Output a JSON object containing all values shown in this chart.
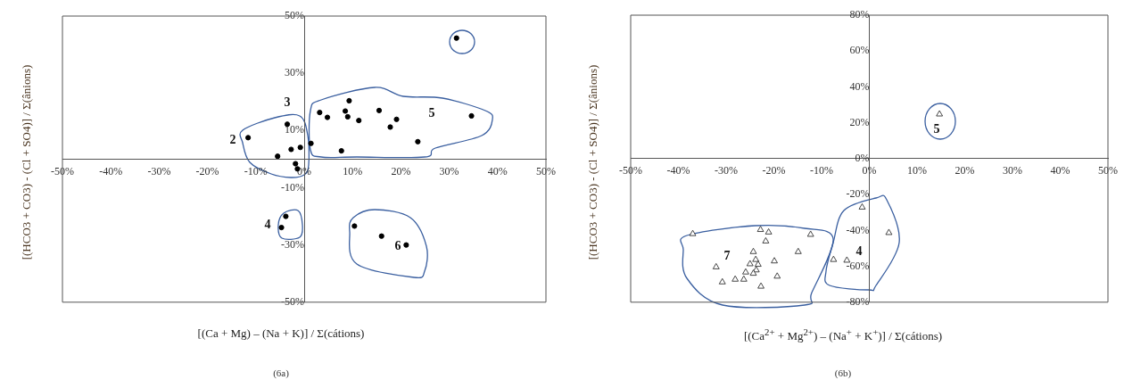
{
  "chart_data": [
    {
      "type": "scatter",
      "title": "(6a)",
      "xlabel": "[(Ca + Mg) – (Na + K)] / Σ(cátions)",
      "ylabel": "[(HCO3 + CO3) - (Cl + SO4)] / Σ(ânions)",
      "marker": "circle",
      "grid": false,
      "legend": false,
      "xlim": [
        -50,
        50
      ],
      "xticks": [
        {
          "value": -50,
          "label": "-50%"
        },
        {
          "value": -40,
          "label": "-40%"
        },
        {
          "value": -30,
          "label": "-30%"
        },
        {
          "value": -20,
          "label": "-20%"
        },
        {
          "value": -10,
          "label": "-10%"
        },
        {
          "value": 0,
          "label": "0%"
        },
        {
          "value": 10,
          "label": "10%"
        },
        {
          "value": 20,
          "label": "20%"
        },
        {
          "value": 30,
          "label": "30%"
        },
        {
          "value": 40,
          "label": "40%"
        },
        {
          "value": 50,
          "label": "50%"
        }
      ],
      "ylim": [
        -50,
        50
      ],
      "yticks": [
        {
          "value": -50,
          "label": "-50%"
        },
        {
          "value": -30,
          "label": "-30%"
        },
        {
          "value": -10,
          "label": "-10%"
        },
        {
          "value": 10,
          "label": "10%"
        },
        {
          "value": 30,
          "label": "30%"
        },
        {
          "value": 50,
          "label": "50%"
        }
      ],
      "series": [
        {
          "color": "#000000",
          "x": [
            31.5,
            9.3,
            3.2,
            4.8,
            8.5,
            9.0,
            11.3,
            15.5,
            17.8,
            19.1,
            34.6,
            23.5,
            1.4,
            7.7,
            -0.8,
            -2.7,
            -5.5,
            -3.5,
            -11.6,
            -1.8,
            -1.4,
            -3.8,
            -4.7,
            10.4,
            16.0,
            21.1
          ],
          "values": [
            42.3,
            20.4,
            16.3,
            14.6,
            16.8,
            14.8,
            13.5,
            17.0,
            11.2,
            13.9,
            15.1,
            6.1,
            5.5,
            2.9,
            4.1,
            3.4,
            1.0,
            12.2,
            7.5,
            -1.6,
            -3.4,
            -20.0,
            -23.9,
            -23.4,
            -26.9,
            -30.0
          ]
        }
      ],
      "annotations": [
        "2",
        "3",
        "4",
        "5",
        "6"
      ]
    },
    {
      "type": "scatter",
      "title": "(6b)",
      "xlabel": "[(Ca$^{2+}$ + Mg$^{2+}$) – (Na$^{+}$ + K$^{+}$)] / Σ(cátions)",
      "ylabel": "[(HCO3 + CO3) - (Cl + SO4)] / Σ(ânions)",
      "marker": "triangle",
      "grid": false,
      "legend": false,
      "xlim": [
        -50,
        50
      ],
      "xticks": [
        {
          "value": -50,
          "label": "-50%"
        },
        {
          "value": -40,
          "label": "-40%"
        },
        {
          "value": -30,
          "label": "-30%"
        },
        {
          "value": -20,
          "label": "-20%"
        },
        {
          "value": -10,
          "label": "-10%"
        },
        {
          "value": 0,
          "label": "0%"
        },
        {
          "value": 10,
          "label": "10%"
        },
        {
          "value": 20,
          "label": "20%"
        },
        {
          "value": 30,
          "label": "30%"
        },
        {
          "value": 40,
          "label": "40%"
        },
        {
          "value": 50,
          "label": "50%"
        }
      ],
      "ylim": [
        -80,
        80
      ],
      "yticks": [
        {
          "value": -80,
          "label": "-80%"
        },
        {
          "value": -60,
          "label": "-60%"
        },
        {
          "value": -40,
          "label": "-40%"
        },
        {
          "value": -20,
          "label": "-20%"
        },
        {
          "value": 0,
          "label": "0%"
        },
        {
          "value": 20,
          "label": "20%"
        },
        {
          "value": 40,
          "label": "40%"
        },
        {
          "value": 60,
          "label": "60%"
        },
        {
          "value": 80,
          "label": "80%"
        }
      ],
      "series": [
        {
          "color": "#333333",
          "x": [
            14.7,
            -1.5,
            4.1,
            -7.5,
            -4.7,
            -37.0,
            -22.8,
            -21.1,
            -21.7,
            -12.3,
            -14.9,
            -24.3,
            -23.8,
            -19.9,
            -25.0,
            -23.3,
            -23.7,
            -25.9,
            -24.3,
            -19.3,
            -32.1,
            -30.8,
            -28.1,
            -26.3,
            -22.7
          ],
          "values": [
            24.8,
            -27.1,
            -41.3,
            -56.3,
            -56.7,
            -41.9,
            -39.6,
            -41.0,
            -46.0,
            -42.3,
            -51.9,
            -51.9,
            -56.3,
            -57.1,
            -58.7,
            -59.0,
            -62.1,
            -63.3,
            -64.0,
            -65.6,
            -60.4,
            -68.8,
            -67.3,
            -67.3,
            -71.2
          ]
        }
      ],
      "annotations": [
        "7",
        "4",
        "5"
      ]
    }
  ]
}
